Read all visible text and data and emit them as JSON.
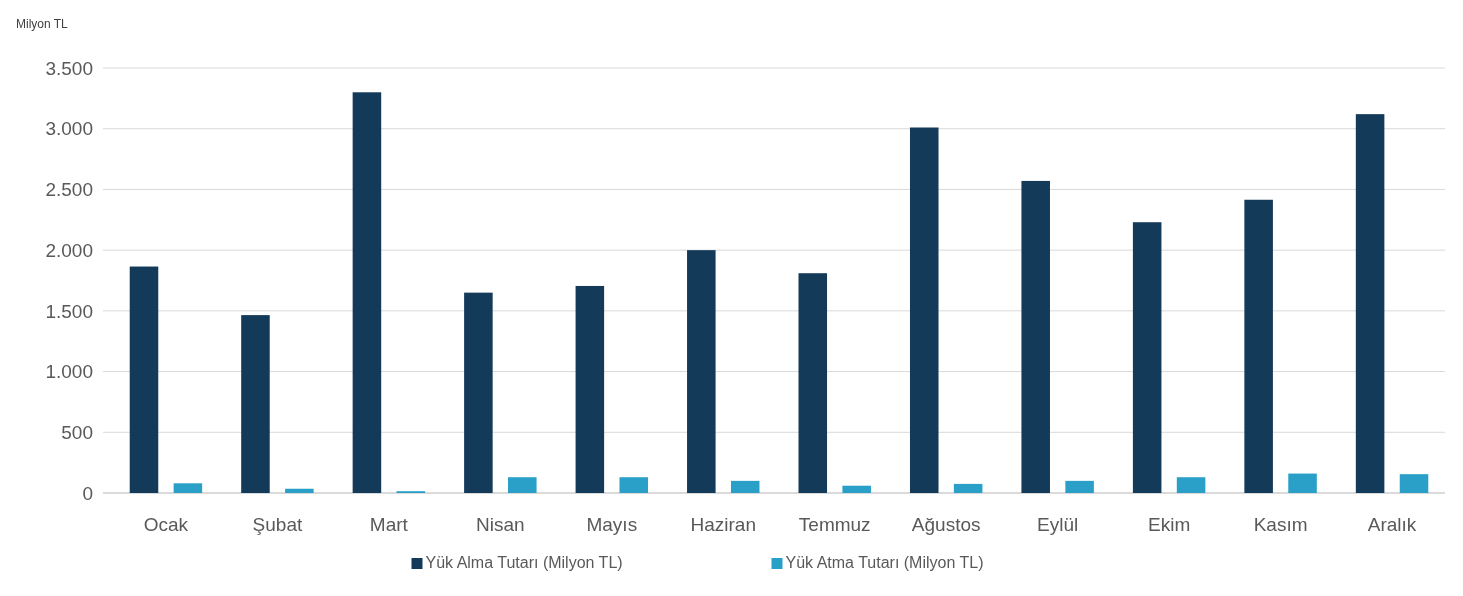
{
  "chart_data": {
    "type": "bar",
    "ylabel": "Milyon TL",
    "categories": [
      "Ocak",
      "Şubat",
      "Mart",
      "Nisan",
      "Mayıs",
      "Haziran",
      "Temmuz",
      "Ağustos",
      "Eylül",
      "Ekim",
      "Kasım",
      "Aralık"
    ],
    "series": [
      {
        "name": "Yük Alma Tutarı (Milyon TL)",
        "color": "#143a5a",
        "values": [
          1865,
          1465,
          3300,
          1650,
          1705,
          2000,
          1810,
          3010,
          2570,
          2230,
          2415,
          3120
        ]
      },
      {
        "name": "Yük Atma Tutarı (Milyon TL)",
        "color": "#2aa0c8",
        "values": [
          80,
          35,
          15,
          130,
          130,
          100,
          60,
          75,
          100,
          130,
          160,
          155
        ]
      }
    ],
    "ylim": [
      0,
      3500
    ],
    "yticks": [
      {
        "value": 0,
        "label": "0"
      },
      {
        "value": 500,
        "label": "500"
      },
      {
        "value": 1000,
        "label": "1.000"
      },
      {
        "value": 1500,
        "label": "1.500"
      },
      {
        "value": 2000,
        "label": "2.000"
      },
      {
        "value": 2500,
        "label": "2.500"
      },
      {
        "value": 3000,
        "label": "3.000"
      },
      {
        "value": 3500,
        "label": "3.500"
      }
    ],
    "grid": "y",
    "legend": "bottom"
  }
}
